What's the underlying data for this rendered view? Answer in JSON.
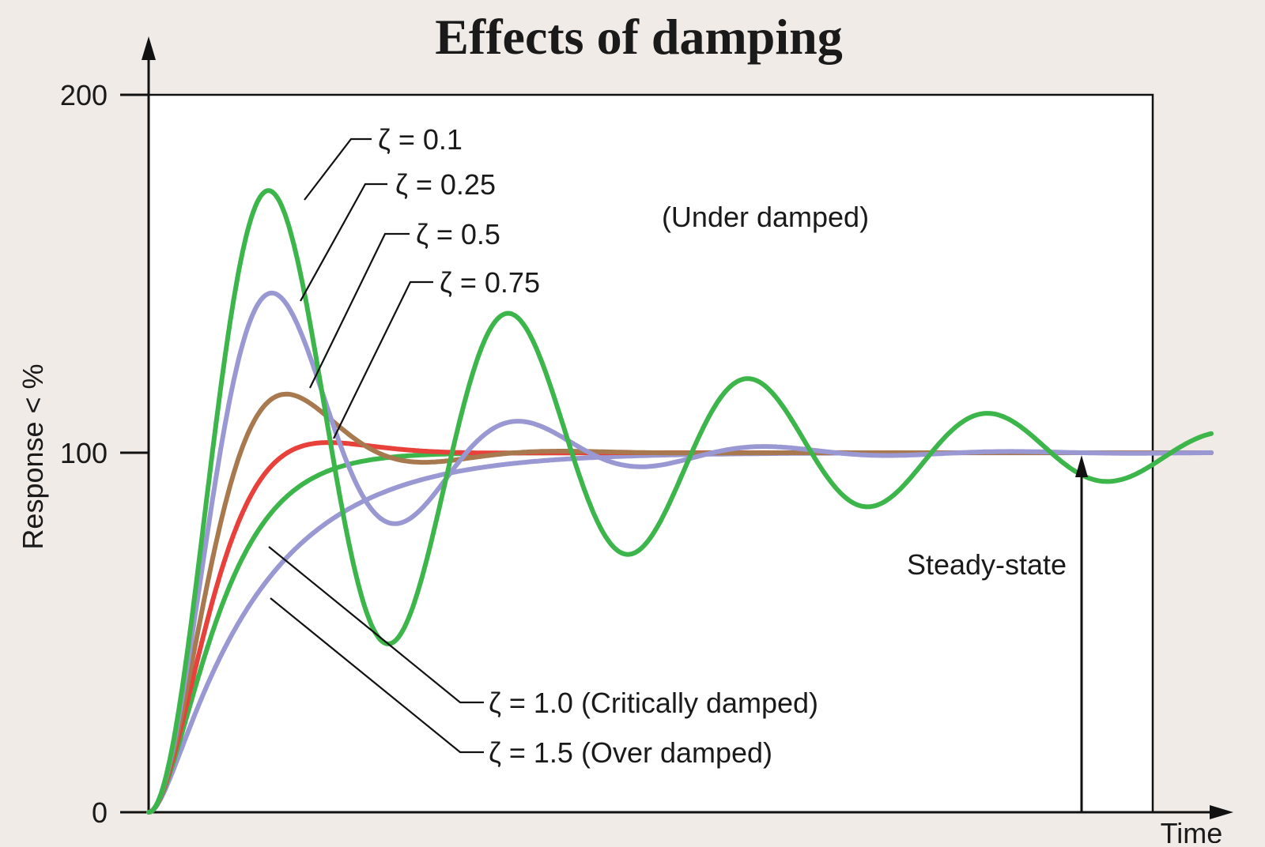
{
  "chart_data": {
    "type": "line",
    "title": "Effects of damping",
    "xlabel": "Time",
    "ylabel": "Response < %",
    "ylim": [
      0,
      200
    ],
    "xlim": [
      0,
      28
    ],
    "y_ticks": [
      "200",
      "100",
      "0"
    ],
    "annotations": {
      "under_damped": "(Under damped)",
      "steady_state": "Steady-state"
    },
    "series": [
      {
        "name": "ζ = 0.1",
        "zeta": 0.1,
        "color": "#3cb54a"
      },
      {
        "name": "ζ = 0.25",
        "zeta": 0.25,
        "color": "#9a98d3"
      },
      {
        "name": "ζ = 0.5",
        "zeta": 0.5,
        "color": "#a8784e"
      },
      {
        "name": "ζ = 0.75",
        "zeta": 0.75,
        "color": "#e8403a"
      },
      {
        "name": "ζ = 1.0 (Critically damped)",
        "zeta": 1.0,
        "color": "#3cb54a"
      },
      {
        "name": "ζ = 1.5 (Over damped)",
        "zeta": 1.5,
        "color": "#9a98d3"
      }
    ]
  }
}
